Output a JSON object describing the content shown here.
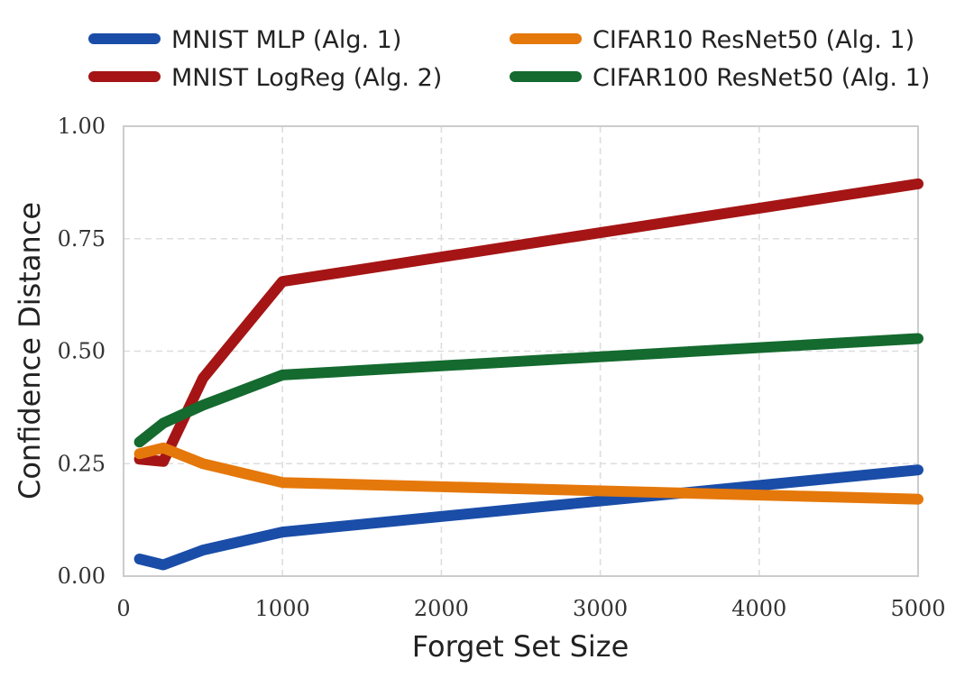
{
  "chart_data": {
    "type": "line",
    "title": "",
    "xlabel": "Forget Set Size",
    "ylabel": "Confidence Distance",
    "xlim": [
      0,
      5000
    ],
    "ylim": [
      0,
      1.0
    ],
    "x_ticks": [
      0,
      1000,
      2000,
      3000,
      4000,
      5000
    ],
    "x_tick_labels": [
      "0",
      "1000",
      "2000",
      "3000",
      "4000",
      "5000"
    ],
    "y_ticks": [
      0,
      0.25,
      0.5,
      0.75,
      1.0
    ],
    "y_tick_labels": [
      "0.00",
      "0.25",
      "0.50",
      "0.75",
      "1.00"
    ],
    "grid": true,
    "legend_position": "top",
    "x": [
      100,
      250,
      500,
      1000,
      5000
    ],
    "series": [
      {
        "name": "MNIST MLP (Alg. 1)",
        "color": "#1a4da8",
        "values": [
          0.038,
          0.025,
          0.058,
          0.098,
          0.236
        ]
      },
      {
        "name": "MNIST LogReg (Alg. 2)",
        "color": "#a51515",
        "values": [
          0.26,
          0.255,
          0.44,
          0.655,
          0.872
        ]
      },
      {
        "name": "CIFAR10 ResNet50 (Alg. 1)",
        "color": "#e5780a",
        "values": [
          0.272,
          0.285,
          0.25,
          0.208,
          0.171
        ]
      },
      {
        "name": "CIFAR100 ResNet50 (Alg. 1)",
        "color": "#146a2f",
        "values": [
          0.298,
          0.34,
          0.38,
          0.447,
          0.528
        ]
      }
    ]
  }
}
